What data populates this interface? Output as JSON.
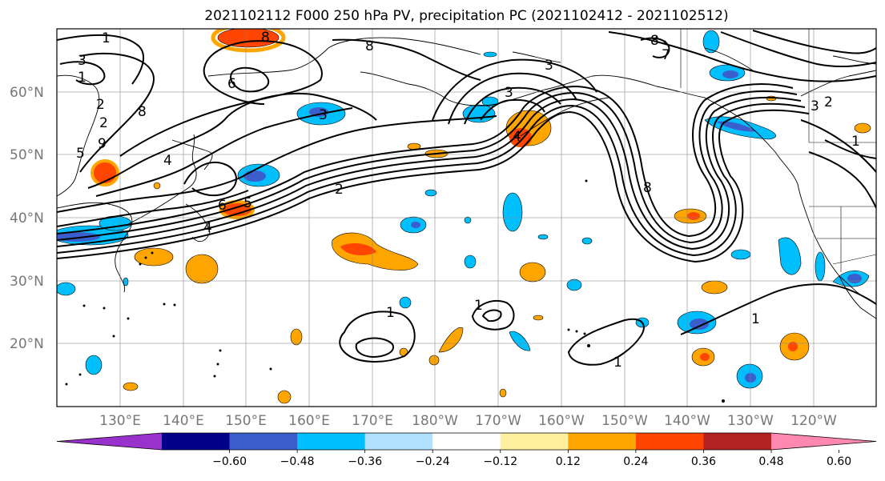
{
  "title": "2021102112 F000 250 hPa PV, precipitation PC (2021102412 - 2021102512)",
  "lat_labels": [
    "60°N",
    "50°N",
    "40°N",
    "30°N",
    "20°N"
  ],
  "lon_labels": [
    "130°E",
    "140°E",
    "150°E",
    "160°E",
    "170°E",
    "180°W",
    "170°W",
    "160°W",
    "150°W",
    "140°W",
    "130°W",
    "120°W"
  ],
  "colorbar": {
    "colors": [
      "#9932cc",
      "#00008b",
      "#3a5fcd",
      "#00bfff",
      "#b0e2ff",
      "#ffffff",
      "#fff0a0",
      "#ffa500",
      "#ff4500",
      "#b22222",
      "#ff88b0"
    ],
    "ticks": [
      "−0.60",
      "−0.48",
      "−0.36",
      "−0.24",
      "−0.12",
      "0.12",
      "0.24",
      "0.36",
      "0.48",
      "0.60"
    ]
  },
  "contour_labels": [
    "1",
    "3",
    "1",
    "2",
    "8",
    "8",
    "6",
    "5",
    "9",
    "4",
    "6",
    "5",
    "4",
    "2",
    "2",
    "8",
    "3",
    "3",
    "4",
    "8",
    "3",
    "7",
    "3",
    "1",
    "2",
    "1",
    "1",
    "1",
    "8",
    "1"
  ]
}
